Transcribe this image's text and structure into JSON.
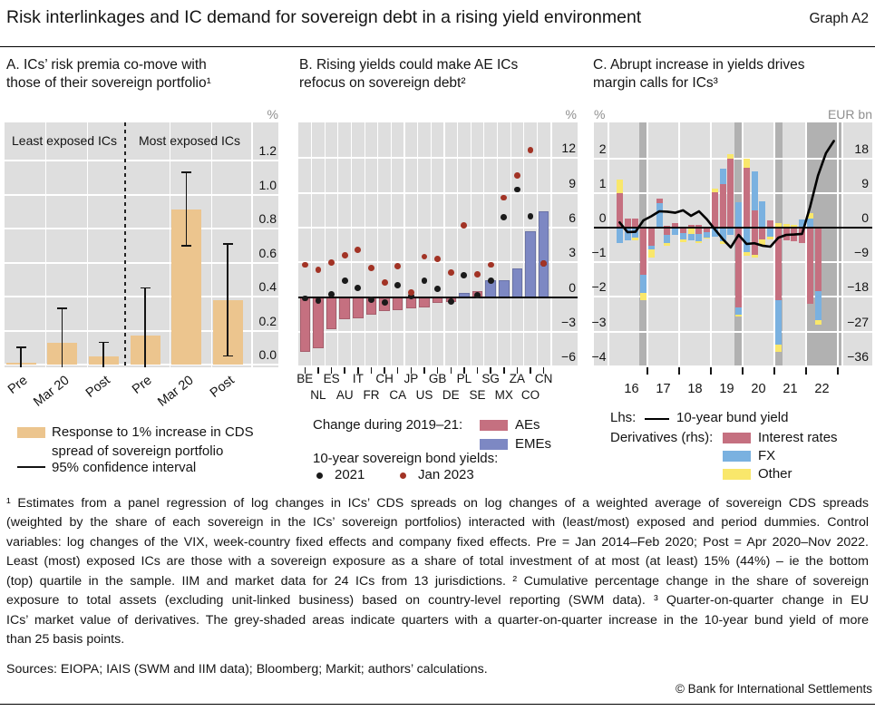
{
  "header": {
    "title": "Risk interlinkages and IC demand for sovereign debt in a rising yield environment",
    "graph_label": "Graph A2"
  },
  "colors": {
    "bar_tan": "#ecc58e",
    "ae_pink": "#c57080",
    "eme_blue": "#7d88c3",
    "fx_blue": "#7ab1e0",
    "other_yellow": "#f9e76b",
    "dot_2021": "#1a1a1a",
    "dot_jan2023": "#a23325",
    "plot_bg": "#dedede",
    "band_grey": "rgba(110,110,110,0.40)",
    "line_black": "#000000",
    "unit_grey": "#8f8f8f"
  },
  "chart_data": [
    {
      "id": "A",
      "type": "bar",
      "title_lines": [
        "A. ICs’ risk premia co-move with",
        "those of their sovereign portfolio¹"
      ],
      "unit": "%",
      "group_labels": [
        "Least exposed ICs",
        "Most exposed ICs"
      ],
      "categories": [
        "Pre",
        "Mar 20",
        "Post",
        "Pre",
        "Mar 20",
        "Post"
      ],
      "values": [
        0.01,
        0.13,
        0.05,
        0.17,
        0.91,
        0.38
      ],
      "ci_low": [
        -0.09,
        -0.08,
        -0.03,
        -0.11,
        0.7,
        0.05
      ],
      "ci_high": [
        0.1,
        0.33,
        0.13,
        0.45,
        1.13,
        0.71
      ],
      "yticks": [
        0,
        0.2,
        0.4,
        0.6,
        0.8,
        1.0,
        1.2
      ],
      "ytick_labels": [
        "0.0",
        "0.2",
        "0.4",
        "0.6",
        "0.8",
        "1.0",
        "1.2"
      ],
      "ylim": [
        -0.037,
        1.424
      ],
      "legend_bar_label": "Response to 1% increase in CDS spread of sovereign portfolio",
      "legend_ci_label": "95% confidence interval"
    },
    {
      "id": "B",
      "type": "bar-dots",
      "title_lines": [
        "B. Rising yields could make AE ICs",
        "refocus on sovereign debt²"
      ],
      "unit": "%",
      "categories": [
        "BE",
        "NL",
        "ES",
        "AU",
        "IT",
        "FR",
        "CH",
        "CA",
        "JP",
        "US",
        "GB",
        "DE",
        "PL",
        "SE",
        "SG",
        "MX",
        "ZA",
        "CO",
        "CN"
      ],
      "bar_values": [
        -4.7,
        -4.4,
        -2.8,
        -1.9,
        -1.8,
        -1.5,
        -1.2,
        -1.1,
        -0.95,
        -0.9,
        -0.5,
        -0.45,
        0.4,
        0.5,
        1.45,
        1.45,
        2.5,
        5.7,
        7.4
      ],
      "bar_class": [
        "AE",
        "AE",
        "AE",
        "AE",
        "AE",
        "AE",
        "AE",
        "AE",
        "AE",
        "AE",
        "AE",
        "AE",
        "EME",
        "AE",
        "EME",
        "EME",
        "EME",
        "EME",
        "EME"
      ],
      "dots_2021": [
        -0.1,
        -0.3,
        0.25,
        1.45,
        0.8,
        -0.2,
        -0.45,
        1.05,
        0.1,
        1.4,
        0.7,
        -0.35,
        1.9,
        0.15,
        1.4,
        6.9,
        9.3,
        7.0,
        2.9
      ],
      "dots_jan2023": [
        2.8,
        2.35,
        3.0,
        3.6,
        4.1,
        2.5,
        1.25,
        2.7,
        0.4,
        3.5,
        3.3,
        2.1,
        6.2,
        1.95,
        2.8,
        8.6,
        10.5,
        12.7,
        2.9
      ],
      "yticks": [
        -6,
        -3,
        0,
        3,
        6,
        9,
        12
      ],
      "ytick_labels": [
        "−6",
        "−3",
        "0",
        "3",
        "6",
        "9",
        "12"
      ],
      "ylim": [
        -6.05,
        15.1
      ],
      "legend_change_label": "Change during 2019–21:",
      "legend_ae": "AEs",
      "legend_eme": "EMEs",
      "legend_yields_label": "10-year sovereign bond yields:",
      "legend_dot1": "2021",
      "legend_dot2": "Jan 2023"
    },
    {
      "id": "C",
      "type": "stacked-bar-line",
      "title_lines": [
        "C. Abrupt increase in yields drives",
        "margin calls for ICs³"
      ],
      "unit_left": "%",
      "unit_right": "EUR bn",
      "years": [
        "16",
        "17",
        "18",
        "19",
        "20",
        "21",
        "22"
      ],
      "quarters": [
        {
          "q": "16Q1",
          "up": [
            [
              "ir",
              9.0
            ],
            [
              "other",
              3.5
            ]
          ],
          "down": [
            [
              "fx",
              -4.0
            ]
          ]
        },
        {
          "q": "16Q2",
          "up": [
            [
              "ir",
              2.3
            ]
          ],
          "down": [
            [
              "fx",
              -3.2
            ]
          ]
        },
        {
          "q": "16Q3",
          "up": [
            [
              "ir",
              2.4
            ]
          ],
          "down": [
            [
              "fx",
              -2.5
            ],
            [
              "other",
              -0.7
            ]
          ]
        },
        {
          "q": "16Q4",
          "up": [],
          "down": [
            [
              "ir",
              -12.3
            ],
            [
              "fx",
              -4.7
            ],
            [
              "other",
              -1.9
            ]
          ]
        },
        {
          "q": "17Q1",
          "up": [],
          "down": [
            [
              "ir",
              -4.6
            ],
            [
              "fx",
              -1.0
            ],
            [
              "other",
              -2.2
            ]
          ]
        },
        {
          "q": "17Q2",
          "up": [
            [
              "fx",
              6.4
            ],
            [
              "ir",
              1.1
            ]
          ],
          "down": []
        },
        {
          "q": "17Q3",
          "up": [
            [
              "ir",
              0.5
            ]
          ],
          "down": [
            [
              "ir",
              -2.0
            ],
            [
              "fx",
              -1.9
            ],
            [
              "other",
              -0.8
            ]
          ]
        },
        {
          "q": "17Q4",
          "up": [
            [
              "ir",
              1.2
            ]
          ],
          "down": [
            [
              "fx",
              -1.9
            ]
          ]
        },
        {
          "q": "18Q1",
          "up": [],
          "down": [
            [
              "ir",
              -1.3
            ],
            [
              "fx",
              -1.7
            ],
            [
              "other",
              -0.8
            ]
          ]
        },
        {
          "q": "18Q2",
          "up": [
            [
              "ir",
              0.6
            ]
          ],
          "down": [
            [
              "other",
              -1.7
            ],
            [
              "fx",
              -1.6
            ]
          ]
        },
        {
          "q": "18Q3",
          "up": [
            [
              "ir",
              0.8
            ]
          ],
          "down": [
            [
              "ir",
              -1.7
            ],
            [
              "fx",
              -1.8
            ],
            [
              "other",
              -0.6
            ]
          ]
        },
        {
          "q": "18Q4",
          "up": [],
          "down": [
            [
              "ir",
              -1.2
            ],
            [
              "fx",
              -1.3
            ],
            [
              "other",
              -0.4
            ]
          ]
        },
        {
          "q": "19Q1",
          "up": [
            [
              "ir",
              9.3
            ],
            [
              "other",
              0.8
            ]
          ],
          "down": [
            [
              "fx",
              -2.3
            ]
          ]
        },
        {
          "q": "19Q2",
          "up": [
            [
              "ir",
              11.3
            ],
            [
              "fx",
              3.9
            ]
          ],
          "down": [
            [
              "fx",
              -3.5
            ],
            [
              "other",
              -0.8
            ]
          ]
        },
        {
          "q": "19Q3",
          "up": [
            [
              "ir",
              18.0
            ],
            [
              "other",
              1.2
            ]
          ],
          "down": [
            [
              "fx",
              -1.8
            ]
          ]
        },
        {
          "q": "19Q4",
          "up": [
            [
              "fx",
              6.6
            ]
          ],
          "down": [
            [
              "ir",
              -20.7
            ],
            [
              "fx",
              -1.9
            ],
            [
              "other",
              -0.6
            ]
          ]
        },
        {
          "q": "20Q1",
          "up": [
            [
              "ir",
              15.6
            ],
            [
              "other",
              2.4
            ]
          ],
          "down": [
            [
              "fx",
              -6.3
            ],
            [
              "other",
              -0.9
            ]
          ]
        },
        {
          "q": "20Q2",
          "up": [
            [
              "ir",
              4.5
            ],
            [
              "fx",
              10.0
            ]
          ],
          "down": [
            [
              "ir",
              -7.0
            ],
            [
              "other",
              -0.8
            ]
          ]
        },
        {
          "q": "20Q3",
          "up": [
            [
              "ir",
              0.3
            ],
            [
              "fx",
              6.6
            ]
          ],
          "down": [
            [
              "ir",
              -3.1
            ],
            [
              "other",
              -1.6
            ]
          ]
        },
        {
          "q": "20Q4",
          "up": [
            [
              "ir",
              1.8
            ]
          ],
          "down": [
            [
              "fx",
              -2.3
            ],
            [
              "other",
              -0.8
            ]
          ]
        },
        {
          "q": "21Q1",
          "up": [
            [
              "other",
              1.2
            ]
          ],
          "down": [
            [
              "ir",
              -18.8
            ],
            [
              "fx",
              -11.7
            ],
            [
              "other",
              -1.7
            ]
          ]
        },
        {
          "q": "21Q2",
          "up": [
            [
              "other",
              1.0
            ]
          ],
          "down": [
            [
              "ir",
              -3.3
            ]
          ]
        },
        {
          "q": "21Q3",
          "up": [
            [
              "other",
              0.8
            ]
          ],
          "down": [
            [
              "ir",
              -3.5
            ]
          ]
        },
        {
          "q": "21Q4",
          "up": [
            [
              "fx",
              2.2
            ]
          ],
          "down": [
            [
              "ir",
              -3.9
            ]
          ]
        },
        {
          "q": "22Q1",
          "up": [
            [
              "fx",
              2.3
            ],
            [
              "other",
              1.4
            ]
          ],
          "down": [
            [
              "ir",
              -19.7
            ]
          ]
        },
        {
          "q": "22Q2",
          "up": [],
          "down": [
            [
              "ir",
              -16.6
            ],
            [
              "fx",
              -7.4
            ],
            [
              "other",
              -1.3
            ]
          ]
        },
        {
          "q": "22Q3",
          "up": [],
          "down": []
        },
        {
          "q": "22Q4",
          "up": [],
          "down": []
        }
      ],
      "bund_yield": [
        0.15,
        -0.13,
        -0.12,
        0.21,
        0.33,
        0.47,
        0.46,
        0.43,
        0.5,
        0.34,
        0.47,
        0.24,
        -0.05,
        -0.33,
        -0.57,
        -0.21,
        -0.47,
        -0.45,
        -0.52,
        -0.55,
        -0.29,
        -0.21,
        -0.2,
        -0.18,
        0.6,
        1.5,
        2.15,
        2.5
      ],
      "shaded": [
        "16Q4",
        "19Q4",
        "21Q1",
        "22Q1",
        "22Q2",
        "22Q3",
        "22Q4"
      ],
      "yticks_left": [
        -4,
        -3,
        -2,
        -1,
        0,
        1,
        2
      ],
      "ytick_labels_left": [
        "−4",
        "−3",
        "−2",
        "−1",
        "0",
        "1",
        "2"
      ],
      "yticks_right": [
        -36,
        -27,
        -18,
        -9,
        0,
        9,
        18
      ],
      "ytick_labels_right": [
        "−36",
        "−27",
        "−18",
        "−9",
        "0",
        "9",
        "18"
      ],
      "legend_lhs_label": "Lhs:",
      "legend_line_label": "10-year bund yield",
      "legend_rhs_label": "Derivatives (rhs):",
      "legend_items": [
        {
          "key": "ir",
          "label": "Interest rates"
        },
        {
          "key": "fx",
          "label": "FX"
        },
        {
          "key": "other",
          "label": "Other"
        }
      ]
    }
  ],
  "footnotes": {
    "lines": [
      "¹  Estimates from a panel regression of log changes in ICs’ CDS spreads on log changes of a weighted average of sovereign CDS spreads",
      "(weighted by the share of each sovereign in the ICs’ sovereign portfolios) interacted with (least/most) exposed and period dummies. Control",
      "variables: log changes of the VIX, week-country fixed effects and company fixed effects. Pre = Jan 2014–Feb 2020; Post = Apr 2020–Nov 2022.",
      "Least (most) exposed ICs are those with a sovereign exposure as a share of total investment of at most (at least) 15% (44%) – ie the bottom",
      "(top) quartile in the sample. IIM and market data for 24 ICs from 13 jurisdictions.   ²  Cumulative percentage change in the share of sovereign",
      "exposure to total assets (excluding unit-linked business) based on country-level reporting (SWM data).   ³  Quarter-on-quarter change in EU",
      "ICs’ market value of derivatives. The grey-shaded areas indicate quarters with a quarter-on-quarter increase in the 10-year bund yield of more",
      "than 25 basis points."
    ],
    "sources": "Sources: EIOPA; IAIS (SWM and IIM data); Bloomberg; Markit; authors’ calculations.",
    "copyright": "© Bank for International Settlements"
  }
}
